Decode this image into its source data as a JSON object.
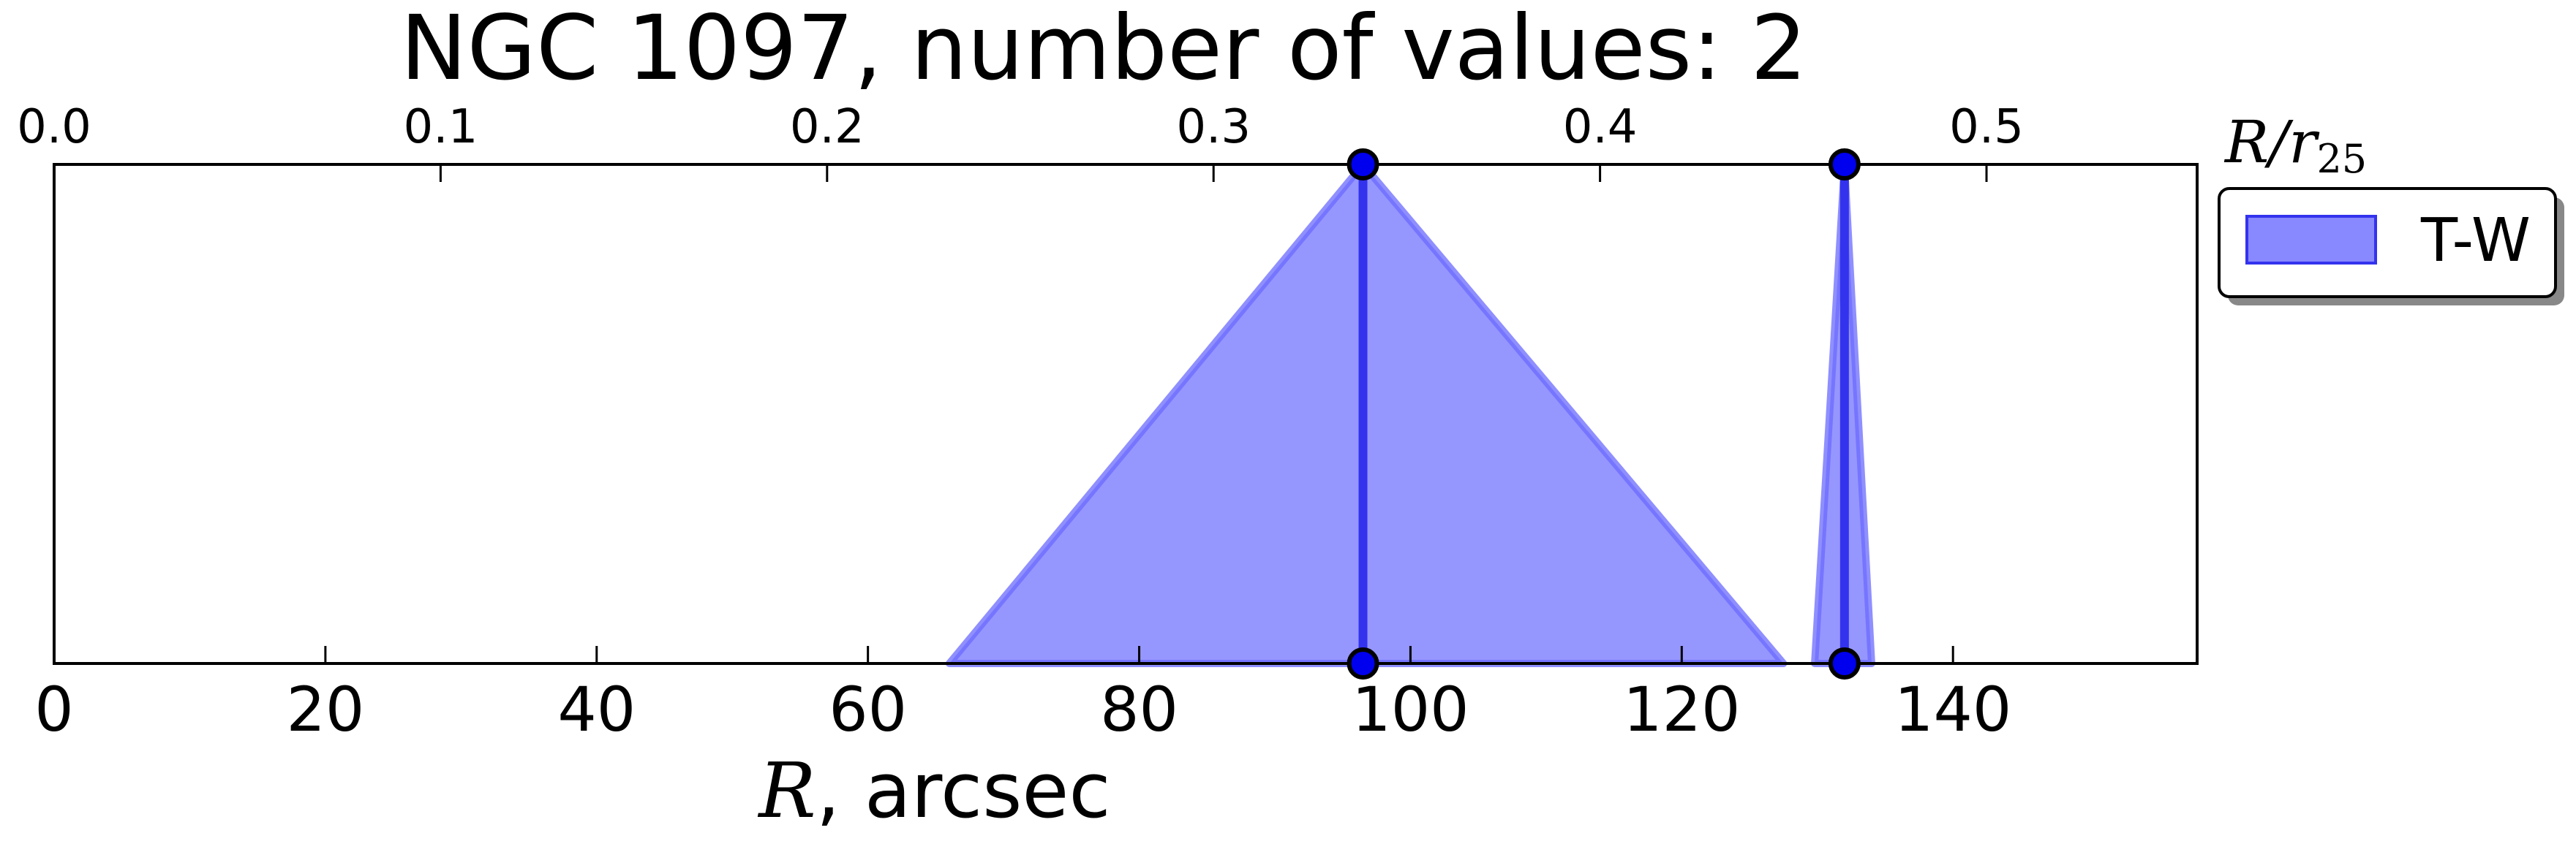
{
  "chart_data": {
    "type": "area",
    "title": "NGC 1097, number of values: 2",
    "xlabel_var": "R",
    "xlabel_unit": ", arcsec",
    "x2label_var": "R/r",
    "x2label_sub": "25",
    "xlim": [
      0,
      158
    ],
    "xticks": [
      0,
      20,
      40,
      60,
      80,
      100,
      120,
      140
    ],
    "x2lim": [
      0.0,
      0.5545
    ],
    "x2ticks": [
      "0.0",
      "0.1",
      "0.2",
      "0.3",
      "0.4",
      "0.5"
    ],
    "grid": false,
    "legend": {
      "placement": "outside-top-right",
      "entries": [
        "T-W"
      ]
    },
    "series": [
      {
        "name": "T-W",
        "color": "#6a6aff",
        "edge_color": "#3333ee",
        "points": [
          {
            "x": 96.5,
            "x_low": 66.0,
            "x_high": 127.5
          },
          {
            "x": 132.0,
            "x_low": 129.8,
            "x_high": 134.0
          }
        ]
      }
    ]
  }
}
